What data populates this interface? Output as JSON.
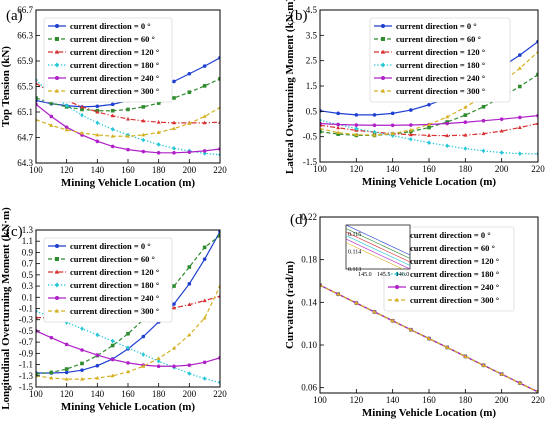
{
  "legend_labels": [
    "current direction = 0 °",
    "current direction = 60 °",
    "current direction = 120 °",
    "current direction = 180 °",
    "current direction = 240 °",
    "current direction = 300 °"
  ],
  "series_colors": [
    "#1f3fd1",
    "#2e8b2e",
    "#d83030",
    "#25c6d6",
    "#b020c8",
    "#d4b020"
  ],
  "series_markers": [
    "circle",
    "square",
    "triangle",
    "diamond",
    "circle",
    "triangle"
  ],
  "series_dash": [
    "solid",
    "dash",
    "dashdot",
    "dot",
    "solid",
    "dash"
  ],
  "chart_data": [
    {
      "type": "line",
      "panel_label": "(a)",
      "xlabel": "Mining Vehicle Location (m)",
      "ylabel": "Top Tension (kN)",
      "xlim": [
        100,
        220
      ],
      "ylim": [
        64.3,
        66.7
      ],
      "xticks": [
        100,
        120,
        140,
        160,
        180,
        200,
        220
      ],
      "yticks": [
        64.3,
        64.7,
        65.1,
        65.5,
        65.9,
        66.3,
        66.7
      ],
      "xtick_labels": [
        "100",
        "120",
        "140",
        "160",
        "180",
        "200",
        "220"
      ],
      "ytick_labels": [
        "64.3",
        "64.7",
        "65.1",
        "65.5",
        "65.9",
        "66.3",
        "66.7"
      ],
      "legend_position": "top-left",
      "x": [
        100,
        110,
        120,
        130,
        140,
        150,
        160,
        170,
        180,
        190,
        200,
        210,
        220
      ],
      "series": [
        {
          "name": "current direction = 0 °",
          "values": [
            65.28,
            65.23,
            65.2,
            65.18,
            65.19,
            65.22,
            65.28,
            65.36,
            65.46,
            65.58,
            65.7,
            65.82,
            65.95
          ]
        },
        {
          "name": "current direction = 60 °",
          "values": [
            65.32,
            65.24,
            65.18,
            65.14,
            65.12,
            65.12,
            65.14,
            65.18,
            65.24,
            65.32,
            65.41,
            65.51,
            65.62
          ]
        },
        {
          "name": "current direction = 120 °",
          "values": [
            65.55,
            65.4,
            65.28,
            65.18,
            65.1,
            65.04,
            64.99,
            64.96,
            64.94,
            64.93,
            64.93,
            64.93,
            64.94
          ]
        },
        {
          "name": "current direction = 180 °",
          "values": [
            65.6,
            65.38,
            65.2,
            65.05,
            64.93,
            64.83,
            64.74,
            64.66,
            64.59,
            64.53,
            64.49,
            64.45,
            64.43
          ]
        },
        {
          "name": "current direction = 240 °",
          "values": [
            65.22,
            65.03,
            64.86,
            64.74,
            64.64,
            64.56,
            64.51,
            64.48,
            64.46,
            64.46,
            64.47,
            64.49,
            64.52
          ]
        },
        {
          "name": "current direction = 300 °",
          "values": [
            64.98,
            64.89,
            64.82,
            64.77,
            64.74,
            64.72,
            64.72,
            64.74,
            64.78,
            64.84,
            64.92,
            65.03,
            65.17
          ]
        }
      ]
    },
    {
      "type": "line",
      "panel_label": "(b)",
      "xlabel": "Mining Vehicle Location (m)",
      "ylabel": "Lateral Overturning Moment (kN·m)",
      "xlim": [
        100,
        220
      ],
      "ylim": [
        -1.5,
        4.5
      ],
      "xticks": [
        100,
        120,
        140,
        160,
        180,
        200,
        220
      ],
      "yticks": [
        -1.5,
        -0.5,
        0.5,
        1.5,
        2.5,
        3.5,
        4.5
      ],
      "xtick_labels": [
        "100",
        "120",
        "140",
        "160",
        "180",
        "200",
        "220"
      ],
      "ytick_labels": [
        "-1.5",
        "-0.5",
        "0.5",
        "1.5",
        "2.5",
        "3.5",
        "4.5"
      ],
      "legend_position": "top-right",
      "x": [
        100,
        110,
        120,
        130,
        140,
        150,
        160,
        170,
        180,
        190,
        200,
        210,
        220
      ],
      "series": [
        {
          "name": "current direction = 0 °",
          "values": [
            0.52,
            0.42,
            0.36,
            0.36,
            0.42,
            0.55,
            0.76,
            1.04,
            1.4,
            1.82,
            2.25,
            2.72,
            3.25
          ]
        },
        {
          "name": "current direction = 60 °",
          "values": [
            -0.3,
            -0.4,
            -0.45,
            -0.45,
            -0.4,
            -0.3,
            -0.14,
            0.08,
            0.35,
            0.68,
            1.06,
            1.48,
            1.95
          ]
        },
        {
          "name": "current direction = 120 °",
          "values": [
            -0.05,
            -0.15,
            -0.25,
            -0.32,
            -0.38,
            -0.42,
            -0.45,
            -0.46,
            -0.44,
            -0.38,
            -0.28,
            -0.14,
            0.02
          ]
        },
        {
          "name": "current direction = 180 °",
          "values": [
            0.15,
            -0.02,
            -0.18,
            -0.32,
            -0.46,
            -0.6,
            -0.74,
            -0.86,
            -0.97,
            -1.06,
            -1.13,
            -1.17,
            -1.18
          ]
        },
        {
          "name": "current direction = 240 °",
          "values": [
            0.02,
            -0.02,
            -0.04,
            -0.05,
            -0.05,
            -0.04,
            -0.02,
            0.02,
            0.07,
            0.13,
            0.19,
            0.26,
            0.33
          ]
        },
        {
          "name": "current direction = 300 °",
          "values": [
            -0.18,
            -0.34,
            -0.42,
            -0.44,
            -0.38,
            -0.24,
            -0.02,
            0.28,
            0.66,
            1.1,
            1.62,
            2.2,
            2.85
          ]
        }
      ]
    },
    {
      "type": "line",
      "panel_label": "(c)",
      "xlabel": "Mining Vehicle Location (m)",
      "ylabel": "Longitudinal Overturning Moment (kN·m)",
      "xlim": [
        100,
        220
      ],
      "ylim": [
        -1.5,
        1.3
      ],
      "xticks": [
        100,
        120,
        140,
        160,
        180,
        200,
        220
      ],
      "yticks": [
        -1.5,
        -1.3,
        -1.1,
        -0.9,
        -0.7,
        -0.5,
        -0.3,
        -0.1,
        0.1,
        0.3,
        0.5,
        0.7,
        0.9,
        1.1,
        1.3
      ],
      "xtick_labels": [
        "100",
        "120",
        "140",
        "160",
        "180",
        "200",
        "220"
      ],
      "ytick_labels": [
        "-1.5",
        "-1.3",
        "-1.1",
        "-0.9",
        "-0.7",
        "-0.5",
        "-0.3",
        "-0.1",
        "0.1",
        "0.3",
        "0.5",
        "0.7",
        "0.9",
        "1.1",
        "1.3"
      ],
      "legend_position": "top-left",
      "x": [
        100,
        110,
        120,
        130,
        140,
        150,
        160,
        170,
        180,
        190,
        200,
        210,
        220
      ],
      "series": [
        {
          "name": "current direction = 0 °",
          "values": [
            -1.25,
            -1.25,
            -1.24,
            -1.2,
            -1.12,
            -1.0,
            -0.82,
            -0.6,
            -0.34,
            -0.02,
            0.34,
            0.78,
            1.27
          ]
        },
        {
          "name": "current direction = 60 °",
          "values": [
            -1.27,
            -1.24,
            -1.18,
            -1.08,
            -0.94,
            -0.76,
            -0.55,
            -0.3,
            -0.02,
            0.3,
            0.64,
            0.99,
            1.2
          ]
        },
        {
          "name": "current direction = 120 °",
          "values": [
            -0.26,
            -0.27,
            -0.27,
            -0.27,
            -0.26,
            -0.24,
            -0.21,
            -0.18,
            -0.14,
            -0.09,
            -0.03,
            0.04,
            0.12
          ]
        },
        {
          "name": "current direction = 180 °",
          "values": [
            -0.15,
            -0.25,
            -0.35,
            -0.46,
            -0.57,
            -0.68,
            -0.8,
            -0.92,
            -1.04,
            -1.15,
            -1.26,
            -1.35,
            -1.42
          ]
        },
        {
          "name": "current direction = 240 °",
          "values": [
            -0.5,
            -0.62,
            -0.74,
            -0.84,
            -0.93,
            -1.01,
            -1.07,
            -1.11,
            -1.13,
            -1.13,
            -1.11,
            -1.06,
            -0.98
          ]
        },
        {
          "name": "current direction = 300 °",
          "values": [
            -1.3,
            -1.34,
            -1.36,
            -1.36,
            -1.34,
            -1.3,
            -1.23,
            -1.13,
            -0.99,
            -0.81,
            -0.57,
            -0.27,
            0.3
          ]
        }
      ]
    },
    {
      "type": "line",
      "panel_label": "(d)",
      "xlabel": "Mining Vehicle Location (m)",
      "ylabel": "Curvature (rad/m)",
      "xlim": [
        100,
        220
      ],
      "ylim": [
        0.055,
        0.22
      ],
      "xticks": [
        100,
        120,
        140,
        160,
        180,
        200,
        220
      ],
      "yticks": [
        0.06,
        0.1,
        0.14,
        0.18,
        0.22
      ],
      "xtick_labels": [
        "100",
        "120",
        "140",
        "160",
        "180",
        "200",
        "220"
      ],
      "ytick_labels": [
        "0.06",
        "0.10",
        "0.14",
        "0.18",
        "0.22"
      ],
      "legend_position": "top-right",
      "x": [
        100,
        110,
        120,
        130,
        140,
        150,
        160,
        170,
        180,
        190,
        200,
        210,
        220
      ],
      "series": [
        {
          "name": "current direction = 0 °",
          "values": [
            0.156,
            0.1477,
            0.1393,
            0.131,
            0.1227,
            0.1143,
            0.106,
            0.0977,
            0.0893,
            0.081,
            0.0727,
            0.0643,
            0.056
          ]
        },
        {
          "name": "current direction = 60 °",
          "values": [
            0.156,
            0.1477,
            0.1393,
            0.131,
            0.1227,
            0.1143,
            0.106,
            0.0977,
            0.0893,
            0.081,
            0.0727,
            0.0643,
            0.056
          ]
        },
        {
          "name": "current direction = 120 °",
          "values": [
            0.156,
            0.1477,
            0.1393,
            0.131,
            0.1227,
            0.1143,
            0.106,
            0.0977,
            0.0893,
            0.081,
            0.0727,
            0.0643,
            0.056
          ]
        },
        {
          "name": "current direction = 180 °",
          "values": [
            0.156,
            0.1477,
            0.1393,
            0.131,
            0.1227,
            0.1143,
            0.106,
            0.0977,
            0.0893,
            0.081,
            0.0727,
            0.0643,
            0.056
          ]
        },
        {
          "name": "current direction = 240 °",
          "values": [
            0.156,
            0.1477,
            0.1393,
            0.131,
            0.1227,
            0.1143,
            0.106,
            0.0977,
            0.0893,
            0.081,
            0.0727,
            0.0643,
            0.056
          ]
        },
        {
          "name": "current direction = 300 °",
          "values": [
            0.156,
            0.1477,
            0.1393,
            0.131,
            0.1227,
            0.1143,
            0.106,
            0.0977,
            0.0893,
            0.081,
            0.0727,
            0.0643,
            0.056
          ]
        }
      ],
      "inset": {
        "xlim": [
          144.5,
          146.2
        ],
        "ylim": [
          0.113,
          0.1155
        ],
        "xticks": [
          145.0,
          145.5,
          146.0
        ],
        "yticks": [
          0.113,
          0.114,
          0.115
        ],
        "xtick_labels": [
          "145.0",
          "145.5",
          "146.0"
        ],
        "ytick_labels": [
          "0.113",
          "0.114",
          "0.115"
        ],
        "x": [
          144.5,
          146.2
        ],
        "series_values": [
          [
            0.1155,
            0.1138
          ],
          [
            0.1153,
            0.1136
          ],
          [
            0.1151,
            0.1134
          ],
          [
            0.1149,
            0.1132
          ],
          [
            0.1147,
            0.113
          ],
          [
            0.1145,
            0.1128
          ]
        ]
      }
    }
  ]
}
